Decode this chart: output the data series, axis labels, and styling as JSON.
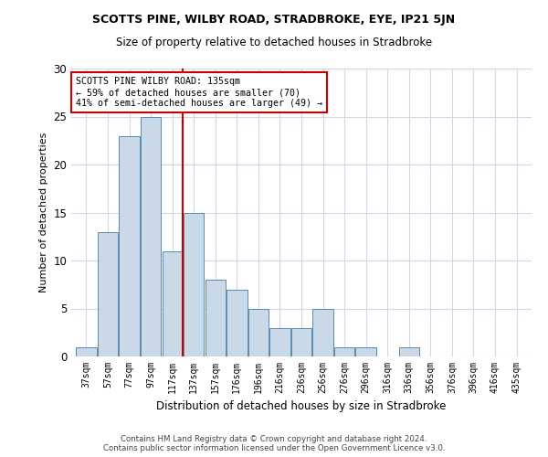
{
  "title": "SCOTTS PINE, WILBY ROAD, STRADBROKE, EYE, IP21 5JN",
  "subtitle": "Size of property relative to detached houses in Stradbroke",
  "xlabel": "Distribution of detached houses by size in Stradbroke",
  "ylabel": "Number of detached properties",
  "categories": [
    "37sqm",
    "57sqm",
    "77sqm",
    "97sqm",
    "117sqm",
    "137sqm",
    "157sqm",
    "176sqm",
    "196sqm",
    "216sqm",
    "236sqm",
    "256sqm",
    "276sqm",
    "296sqm",
    "316sqm",
    "336sqm",
    "356sqm",
    "376sqm",
    "396sqm",
    "416sqm",
    "435sqm"
  ],
  "values": [
    1,
    13,
    23,
    25,
    11,
    15,
    8,
    7,
    5,
    3,
    3,
    5,
    1,
    1,
    0,
    1,
    0,
    0,
    0,
    0,
    0
  ],
  "bar_color": "#c9d9e8",
  "bar_edge_color": "#5a8ab0",
  "ref_line_color": "#cc0000",
  "annotation_line1": "SCOTTS PINE WILBY ROAD: 135sqm",
  "annotation_line2": "← 59% of detached houses are smaller (70)",
  "annotation_line3": "41% of semi-detached houses are larger (49) →",
  "annotation_box_color": "#cc0000",
  "ylim": [
    0,
    30
  ],
  "yticks": [
    0,
    5,
    10,
    15,
    20,
    25,
    30
  ],
  "footer_line1": "Contains HM Land Registry data © Crown copyright and database right 2024.",
  "footer_line2": "Contains public sector information licensed under the Open Government Licence v3.0.",
  "background_color": "#ffffff",
  "grid_color": "#d0d8e8"
}
